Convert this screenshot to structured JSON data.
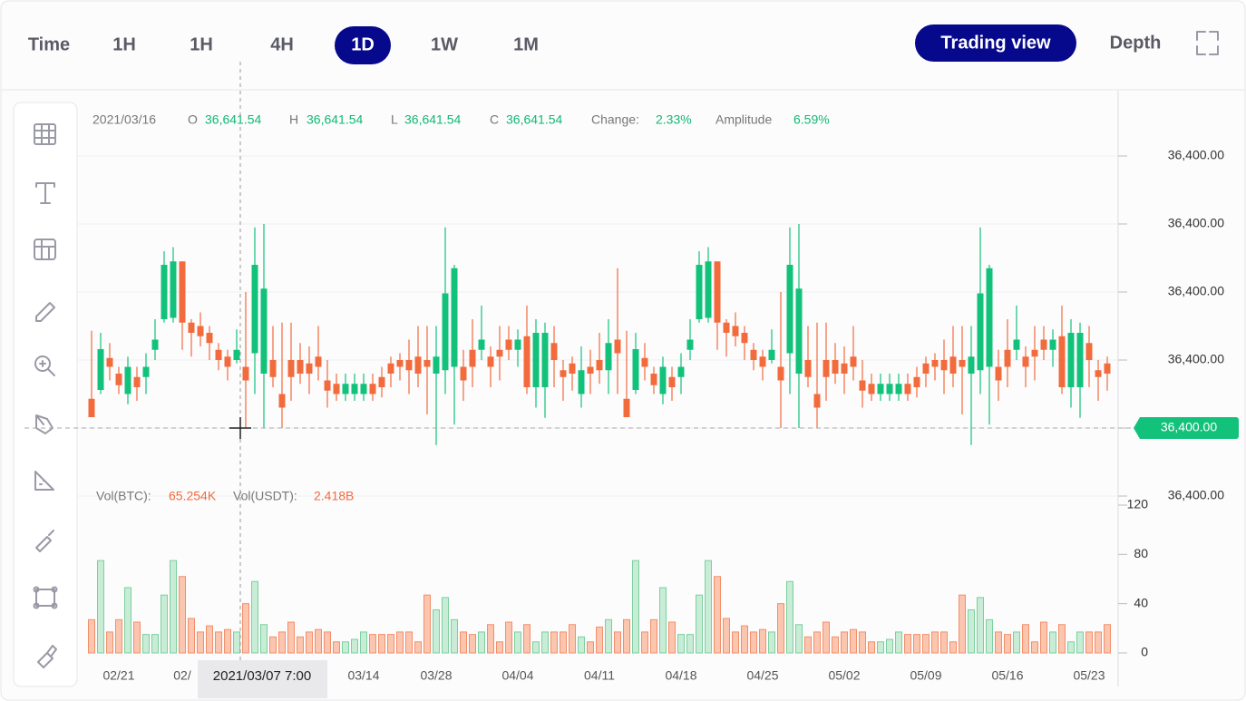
{
  "toolbar": {
    "tabs": [
      "Time",
      "1H",
      "1H",
      "4H",
      "1D",
      "1W",
      "1M"
    ],
    "active_tab": 4,
    "view_tabs": [
      "Trading view",
      "Depth"
    ],
    "active_view": 0
  },
  "info": {
    "date": "2021/03/16",
    "open_label": "O",
    "open": "36,641.54",
    "high_label": "H",
    "high": "36,641.54",
    "low_label": "L",
    "low": "36,641.54",
    "close_label": "C",
    "close": "36,641.54",
    "change_label": "Change:",
    "change": "2.33%",
    "amplitude_label": "Amplitude",
    "amplitude": "6.59%"
  },
  "volume_info": {
    "btc_label": "Vol(BTC):",
    "btc": "65.254K",
    "usdt_label": "Vol(USDT):",
    "usdt": "2.418B"
  },
  "crosshair_label": "2021/03/07 7:00",
  "chart_data": [
    {
      "type": "candlestick",
      "categories": [
        null,
        null,
        null,
        "02/21",
        null,
        null,
        null,
        null,
        null,
        null,
        "02/",
        null,
        null,
        null,
        null,
        null,
        null,
        null,
        null,
        null,
        null,
        null,
        null,
        null,
        null,
        null,
        null,
        null,
        null,
        null,
        "03/14",
        null,
        null,
        null,
        null,
        null,
        null,
        null,
        "03/28",
        null,
        null,
        null,
        null,
        null,
        null,
        null,
        null,
        "04/04",
        null,
        null,
        null,
        null,
        null,
        null,
        null,
        null,
        "04/11",
        null,
        null,
        null,
        null,
        null,
        null,
        null,
        null,
        "04/18",
        null,
        null,
        null,
        null,
        null,
        null,
        null,
        null,
        "04/25",
        null,
        null,
        null,
        null,
        null,
        null,
        null,
        null,
        "05/02",
        null,
        null,
        null,
        null,
        null,
        null,
        null,
        null,
        "05/09",
        null,
        null,
        null,
        null,
        null,
        null,
        null,
        null,
        "05/16",
        null,
        null,
        null,
        null,
        null,
        null,
        null,
        null,
        "05/23",
        null,
        null
      ],
      "open": [
        143,
        156,
        203,
        180,
        150,
        175,
        175,
        215,
        260,
        262,
        345,
        255,
        250,
        240,
        215,
        205,
        200,
        190,
        210,
        180,
        200,
        150,
        200,
        200,
        195,
        205,
        170,
        165,
        150,
        150,
        150,
        165,
        175,
        195,
        200,
        200,
        205,
        200,
        180,
        185,
        190,
        190,
        215,
        215,
        205,
        215,
        230,
        215,
        235,
        160,
        160,
        225,
        185,
        195,
        150,
        190,
        200,
        185,
        230,
        143,
        156,
        203,
        180,
        150,
        175,
        175,
        215,
        260,
        262,
        345,
        255,
        250,
        240,
        215,
        205,
        200,
        190,
        210,
        180,
        200,
        150,
        200,
        200,
        195,
        205,
        170,
        165,
        150,
        150,
        150,
        165,
        175,
        195,
        200,
        200,
        205,
        200,
        180,
        185,
        190,
        190,
        215,
        215,
        205,
        215,
        230,
        215,
        235,
        160,
        160,
        225,
        185,
        195
      ],
      "high": [
        243,
        240,
        225,
        190,
        205,
        190,
        210,
        260,
        360,
        366,
        345,
        260,
        270,
        250,
        225,
        215,
        245,
        300,
        395,
        400,
        250,
        255,
        255,
        225,
        220,
        250,
        200,
        180,
        180,
        180,
        180,
        180,
        190,
        205,
        210,
        230,
        250,
        250,
        250,
        395,
        340,
        215,
        260,
        280,
        220,
        250,
        250,
        245,
        280,
        260,
        255,
        250,
        200,
        205,
        220,
        215,
        240,
        260,
        335,
        243,
        240,
        225,
        190,
        205,
        190,
        210,
        260,
        360,
        366,
        345,
        260,
        270,
        250,
        225,
        215,
        245,
        300,
        395,
        400,
        250,
        255,
        255,
        225,
        220,
        250,
        200,
        180,
        180,
        180,
        180,
        180,
        190,
        205,
        210,
        230,
        250,
        250,
        250,
        395,
        340,
        215,
        260,
        280,
        220,
        250,
        250,
        245,
        280,
        260,
        255,
        250,
        200,
        205
      ],
      "low": [
        116,
        150,
        170,
        150,
        135,
        140,
        150,
        200,
        255,
        255,
        215,
        205,
        220,
        200,
        185,
        170,
        195,
        100,
        150,
        100,
        160,
        100,
        140,
        165,
        150,
        170,
        130,
        140,
        140,
        140,
        140,
        140,
        145,
        160,
        170,
        150,
        160,
        120,
        75,
        150,
        105,
        140,
        160,
        200,
        160,
        170,
        200,
        190,
        150,
        130,
        115,
        160,
        140,
        155,
        130,
        150,
        165,
        150,
        150,
        116,
        150,
        170,
        150,
        135,
        140,
        150,
        200,
        255,
        255,
        215,
        205,
        220,
        200,
        185,
        170,
        195,
        100,
        150,
        100,
        160,
        100,
        140,
        165,
        150,
        170,
        130,
        140,
        140,
        140,
        140,
        140,
        145,
        160,
        170,
        150,
        160,
        120,
        75,
        150,
        105,
        140,
        160,
        200,
        160,
        170,
        200,
        190,
        150,
        130,
        115,
        160,
        140,
        155
      ],
      "close": [
        116,
        216,
        190,
        163,
        190,
        160,
        190,
        230,
        340,
        345,
        255,
        240,
        235,
        225,
        200,
        190,
        215,
        170,
        340,
        305,
        175,
        130,
        175,
        180,
        180,
        190,
        155,
        150,
        165,
        165,
        165,
        150,
        160,
        180,
        190,
        185,
        180,
        190,
        205,
        298,
        335,
        170,
        190,
        230,
        190,
        205,
        215,
        230,
        160,
        240,
        240,
        200,
        175,
        180,
        185,
        180,
        185,
        225,
        210,
        116,
        216,
        190,
        163,
        190,
        160,
        190,
        230,
        340,
        345,
        255,
        240,
        235,
        225,
        200,
        190,
        215,
        170,
        340,
        305,
        175,
        130,
        175,
        180,
        180,
        190,
        155,
        150,
        165,
        165,
        165,
        150,
        160,
        180,
        190,
        185,
        180,
        190,
        205,
        298,
        335,
        170,
        190,
        230,
        190,
        205,
        215,
        230,
        160,
        240,
        240,
        200,
        175,
        180
      ],
      "up_color": "#12c27b",
      "down_color": "#f26b3d",
      "ylim": [
        0,
        500
      ],
      "yticks": [
        {
          "value": 0,
          "label": "36,400.00"
        },
        {
          "value": 100,
          "label": "36,400.00"
        },
        {
          "value": 200,
          "label": "36,400.00"
        },
        {
          "value": 300,
          "label": "36,400.00"
        },
        {
          "value": 400,
          "label": "36,400.00"
        },
        {
          "value": 500,
          "label": "36,400.00"
        }
      ],
      "grid": true,
      "last_price": {
        "value": 100,
        "label": "36,400.00"
      }
    },
    {
      "type": "volume",
      "values": [
        27,
        75,
        17,
        27,
        53,
        25,
        15,
        15,
        47,
        75,
        62,
        28,
        17,
        22,
        17,
        19,
        17,
        40,
        58,
        23,
        13,
        17,
        25,
        13,
        17,
        19,
        17,
        9,
        9,
        11,
        17,
        15,
        15,
        15,
        17,
        17,
        9,
        47,
        35,
        45,
        27,
        17,
        15,
        17,
        23,
        9,
        25,
        17,
        23,
        9,
        17,
        17,
        17,
        23,
        13,
        9,
        21,
        27,
        17,
        27,
        75,
        17,
        27,
        53,
        25,
        15,
        15,
        47,
        75,
        62,
        28,
        17,
        22,
        17,
        19,
        17,
        40,
        58,
        23,
        13,
        17,
        25,
        13,
        17,
        19,
        17,
        9,
        9,
        11,
        17,
        15,
        15,
        15,
        17,
        17,
        9,
        47,
        35,
        45,
        27,
        17,
        15,
        17,
        23,
        9,
        25,
        17,
        23,
        9,
        17,
        17,
        17,
        23
      ],
      "up_color": "#c8ecd6",
      "up_stroke": "#7bd09e",
      "down_color": "#fbc6b0",
      "down_stroke": "#f48e69",
      "ylim": [
        0,
        120
      ],
      "yticks": [
        0,
        40,
        80,
        120
      ]
    }
  ]
}
